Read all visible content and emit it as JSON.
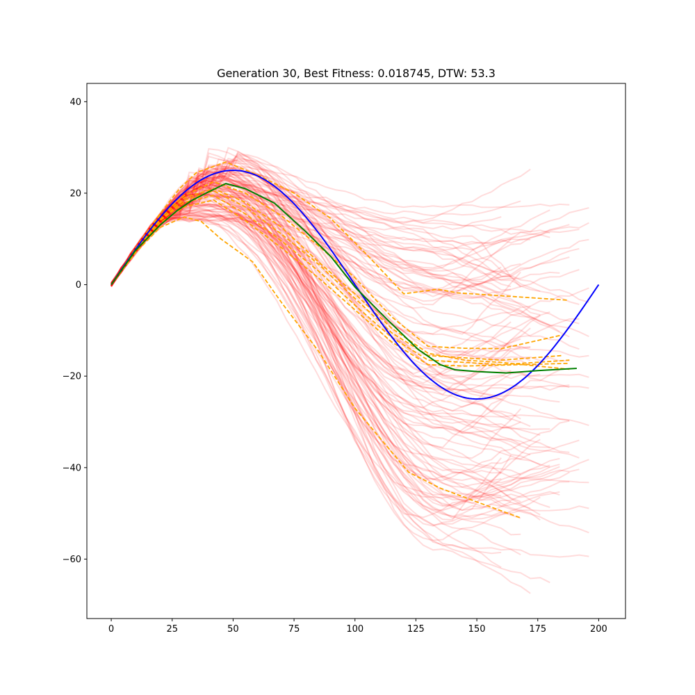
{
  "chart_data": {
    "type": "line",
    "title": "Generation 30, Best Fitness: 0.018745, DTW: 53.3",
    "xlabel": "",
    "ylabel": "",
    "xlim": [
      -10,
      211
    ],
    "ylim": [
      -73,
      44
    ],
    "xticks": [
      0,
      25,
      50,
      75,
      100,
      125,
      150,
      175,
      200
    ],
    "yticks": [
      -60,
      -40,
      -20,
      0,
      20,
      40
    ],
    "ytick_labels": [
      "−60",
      "−40",
      "−20",
      "0",
      "20",
      "40"
    ],
    "grid": false,
    "legend": "none",
    "colors": {
      "target": "#0000ff",
      "best": "#008000",
      "elite": "#ffa500",
      "population": "#ff0000"
    },
    "series": [
      {
        "role": "target",
        "style": "solid",
        "x": [
          0,
          10,
          20,
          30,
          40,
          50,
          60,
          70,
          80,
          90,
          100,
          110,
          120,
          130,
          140,
          150,
          160,
          170,
          180,
          190,
          200
        ],
        "y": [
          0,
          7.7,
          14.7,
          20.2,
          23.8,
          25.0,
          23.8,
          20.2,
          14.7,
          7.7,
          0,
          -7.7,
          -14.7,
          -20.2,
          -23.8,
          -25.0,
          -23.8,
          -20.2,
          -14.7,
          -7.7,
          0
        ]
      },
      {
        "role": "best",
        "style": "solid",
        "x": [
          0,
          10,
          20,
          27,
          33,
          40,
          47,
          55,
          67,
          80,
          90,
          100,
          113,
          126,
          135,
          141,
          150,
          162,
          175,
          191
        ],
        "y": [
          0,
          7.5,
          13.0,
          16.2,
          18.4,
          20.3,
          22.1,
          21.0,
          17.8,
          11.5,
          6.2,
          -0.5,
          -7.5,
          -14.2,
          -17.5,
          -18.6,
          -19.0,
          -19.3,
          -18.8,
          -18.3
        ]
      },
      {
        "role": "elite",
        "style": "dashed",
        "x": [
          0,
          10,
          20,
          28,
          35,
          47,
          60,
          75,
          90,
          105,
          120,
          134,
          142,
          165,
          187
        ],
        "y": [
          0,
          8.0,
          15.5,
          21.0,
          24.5,
          26.8,
          24.0,
          20.0,
          14.5,
          6.5,
          -2.0,
          -1.0,
          -1.8,
          -2.6,
          -3.4
        ]
      },
      {
        "role": "elite",
        "style": "dashed",
        "x": [
          0,
          10,
          20,
          30,
          37,
          45,
          58,
          70,
          85,
          100,
          122,
          135,
          150,
          168
        ],
        "y": [
          0,
          7.0,
          12.5,
          14.8,
          13.8,
          10.0,
          5.0,
          -4.0,
          -14.5,
          -27.0,
          -41.0,
          -44.5,
          -47.5,
          -51.0
        ]
      },
      {
        "role": "elite",
        "style": "dashed",
        "x": [
          0,
          10,
          20,
          30,
          42,
          55,
          70,
          85,
          100,
          115,
          130,
          145,
          160,
          185
        ],
        "y": [
          0,
          7.8,
          15.0,
          19.5,
          22.5,
          20.0,
          15.0,
          8.5,
          1.5,
          -7.0,
          -13.5,
          -13.9,
          -14.0,
          -11.0
        ]
      },
      {
        "role": "elite",
        "style": "dashed",
        "x": [
          0,
          10,
          20,
          30,
          42,
          55,
          70,
          85,
          100,
          115,
          130,
          145,
          160,
          185
        ],
        "y": [
          0,
          7.6,
          14.2,
          18.5,
          20.5,
          17.0,
          11.0,
          4.5,
          -3.0,
          -10.5,
          -15.5,
          -16.0,
          -16.5,
          -15.5
        ]
      },
      {
        "role": "elite",
        "style": "dashed",
        "x": [
          0,
          10,
          20,
          30,
          42,
          55,
          70,
          85,
          100,
          115,
          130,
          145,
          160,
          188
        ],
        "y": [
          0,
          7.6,
          14.0,
          18.0,
          19.5,
          15.5,
          9.5,
          3.0,
          -4.5,
          -11.5,
          -16.5,
          -17.0,
          -17.5,
          -16.5
        ]
      },
      {
        "role": "elite",
        "style": "dashed",
        "x": [
          0,
          10,
          20,
          30,
          42,
          55,
          70,
          85,
          100,
          115,
          130,
          145,
          160,
          188
        ],
        "y": [
          0,
          7.4,
          13.5,
          17.0,
          18.5,
          14.0,
          8.0,
          1.5,
          -5.5,
          -12.5,
          -17.5,
          -17.8,
          -17.6,
          -17.2
        ]
      },
      {
        "role": "elite",
        "style": "dashed",
        "x": [
          0,
          10,
          20,
          30,
          42,
          55,
          70,
          85,
          100,
          115,
          130,
          145,
          160,
          188
        ],
        "y": [
          0,
          7.8,
          14.6,
          19.0,
          21.0,
          18.0,
          12.5,
          5.0,
          -2.0,
          -9.5,
          -15.0,
          -16.5,
          -17.0,
          -18.5
        ]
      }
    ],
    "population": {
      "role": "population",
      "count": 120,
      "x_start": 0,
      "x_end_range": [
        160,
        200
      ],
      "y_end_range": [
        -68,
        39
      ]
    }
  }
}
